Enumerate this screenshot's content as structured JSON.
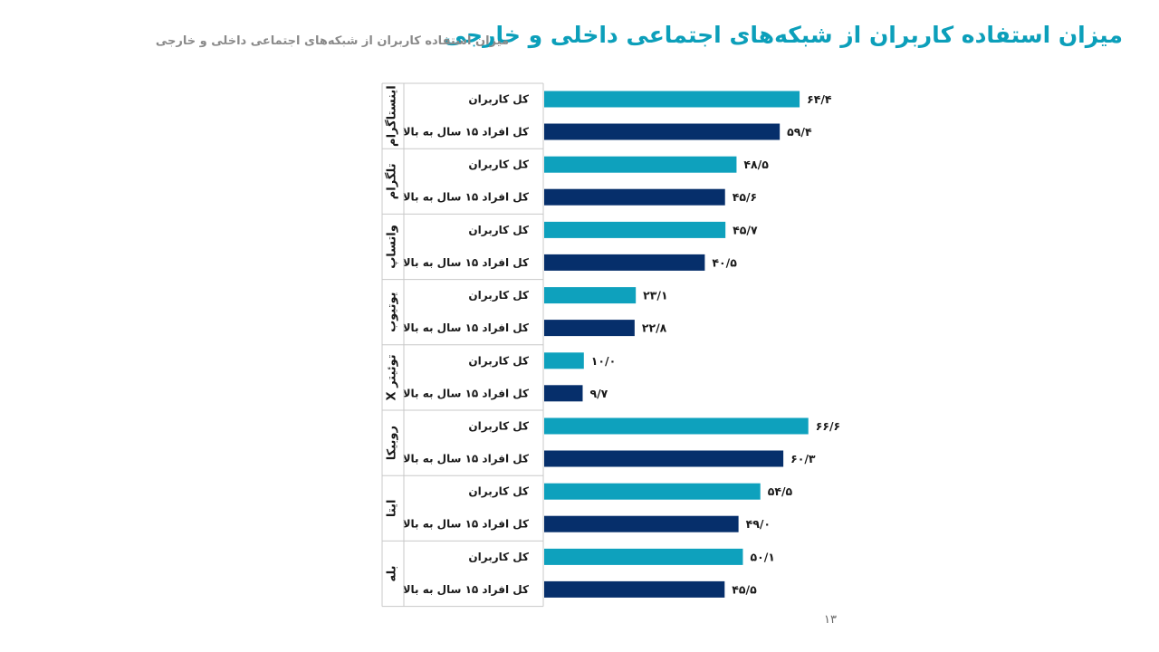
{
  "page": {
    "title": "میزان استفاده کاربران از شبکه‌های اجتماعی داخلی و خارجی",
    "subtitle": "میزان استفاده کاربران از شبکه‌های اجتماعی داخلی و خارجی",
    "page_number": "۱۳"
  },
  "colors": {
    "all_users": "#0ea1bd",
    "age_15_plus": "#062f6b",
    "title": "#0c9fba"
  },
  "chart_data": {
    "type": "bar",
    "orientation": "horizontal",
    "title": "",
    "xlabel": "",
    "ylabel": "",
    "xlim": [
      0,
      70
    ],
    "grid": false,
    "legend": "none",
    "series": [
      {
        "label": "کل کاربران",
        "color": "#0ea1bd"
      },
      {
        "label": "کل افراد ۱۵ سال به بالا",
        "color": "#062f6b"
      }
    ],
    "groups": [
      {
        "category": "اینستاگرام",
        "values": [
          64.4,
          59.4
        ],
        "labels": [
          "۶۴/۴",
          "۵۹/۴"
        ]
      },
      {
        "category": "تلگرام",
        "values": [
          48.5,
          45.6
        ],
        "labels": [
          "۴۸/۵",
          "۴۵/۶"
        ]
      },
      {
        "category": "واتساپ",
        "values": [
          45.7,
          40.5
        ],
        "labels": [
          "۴۵/۷",
          "۴۰/۵"
        ]
      },
      {
        "category": "یوتیوب",
        "values": [
          23.1,
          22.8
        ],
        "labels": [
          "۲۳/۱",
          "۲۲/۸"
        ]
      },
      {
        "category": "توئیتر X",
        "values": [
          10.0,
          9.7
        ],
        "labels": [
          "۱۰/۰",
          "۹/۷"
        ]
      },
      {
        "category": "روبیکا",
        "values": [
          66.6,
          60.3
        ],
        "labels": [
          "۶۶/۶",
          "۶۰/۳"
        ]
      },
      {
        "category": "ایتا",
        "values": [
          54.5,
          49.0
        ],
        "labels": [
          "۵۴/۵",
          "۴۹/۰"
        ]
      },
      {
        "category": "بله",
        "values": [
          50.1,
          45.5
        ],
        "labels": [
          "۵۰/۱",
          "۴۵/۵"
        ]
      }
    ]
  }
}
